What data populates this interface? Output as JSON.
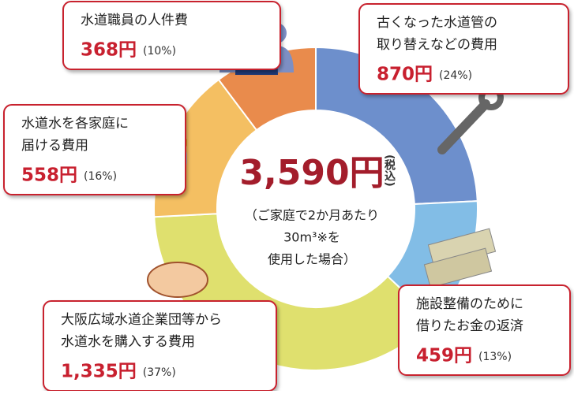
{
  "chart_data": {
    "type": "donut",
    "total_label": "3,590円",
    "tax_note": "(税込)",
    "subtitle": [
      "（ご家庭で2か月あたり",
      "30m³※を",
      "使用した場合）"
    ],
    "categories": [
      [
        "古くなった水道管の",
        "取り替えなどの費用"
      ],
      [
        "施設整備のために",
        "借りたお金の返済"
      ],
      [
        "大阪広域水道企業団等から",
        "水道水を購入する費用"
      ],
      [
        "水道水を各家庭に",
        "届ける費用"
      ],
      [
        "水道職員の人件費"
      ]
    ],
    "values": [
      870,
      459,
      1335,
      558,
      368
    ],
    "value_labels": [
      "870円",
      "459円",
      "1,335円",
      "558円",
      "368円"
    ],
    "percents": [
      24,
      13,
      37,
      16,
      10
    ],
    "percent_labels": [
      "(24%)",
      "(13%)",
      "(37%)",
      "(16%)",
      "(10%)"
    ],
    "colors": [
      "#6d8fcc",
      "#82bde6",
      "#dfe06e",
      "#f4bf62",
      "#e98b4c"
    ]
  }
}
